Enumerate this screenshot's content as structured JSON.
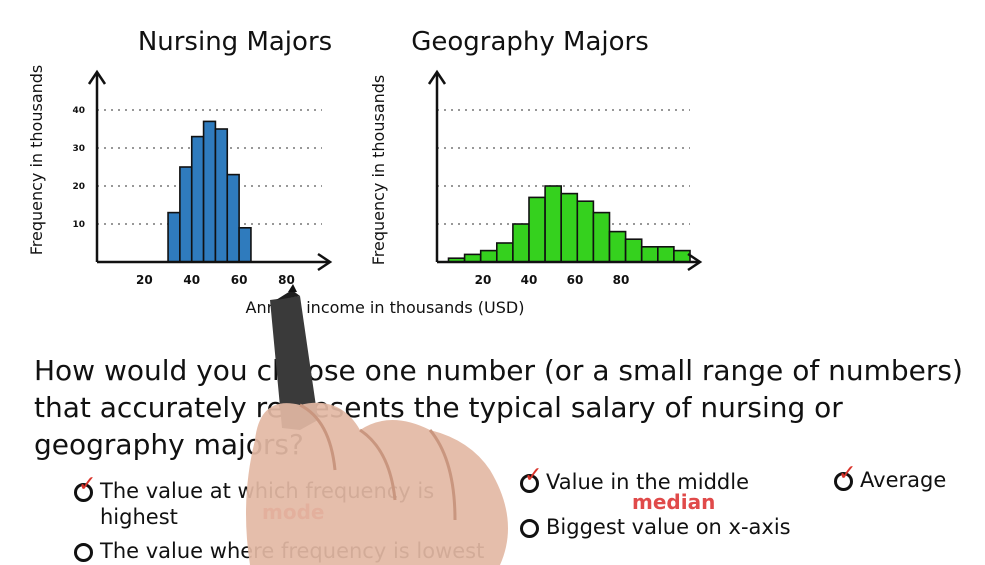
{
  "chart_data": [
    {
      "type": "bar",
      "title": "Nursing Majors",
      "ylabel": "Frequency in thousands",
      "xlabel": "Annual income in thousands (USD)",
      "x_ticks": [
        "20",
        "40",
        "60",
        "80"
      ],
      "y_ticks": [
        "10",
        "20",
        "30",
        "40"
      ],
      "ylim": [
        0,
        40
      ],
      "xlim": [
        0,
        95
      ],
      "bar_color": "#2f7bbd",
      "bins": [
        {
          "x0": 30,
          "x1": 35,
          "value": 13
        },
        {
          "x0": 35,
          "x1": 40,
          "value": 25
        },
        {
          "x0": 40,
          "x1": 45,
          "value": 33
        },
        {
          "x0": 45,
          "x1": 50,
          "value": 37
        },
        {
          "x0": 50,
          "x1": 55,
          "value": 35
        },
        {
          "x0": 55,
          "x1": 60,
          "value": 23
        },
        {
          "x0": 60,
          "x1": 65,
          "value": 9
        }
      ],
      "grid": true
    },
    {
      "type": "bar",
      "title": "Geography Majors",
      "ylabel": "Frequency in thousands",
      "x_ticks": [
        "20",
        "40",
        "60",
        "80"
      ],
      "ylim": [
        0,
        40
      ],
      "xlim": [
        0,
        110
      ],
      "bar_color": "#35d11e",
      "bins": [
        {
          "x0": 5,
          "x1": 12,
          "value": 1
        },
        {
          "x0": 12,
          "x1": 19,
          "value": 2
        },
        {
          "x0": 19,
          "x1": 26,
          "value": 3
        },
        {
          "x0": 26,
          "x1": 33,
          "value": 5
        },
        {
          "x0": 33,
          "x1": 40,
          "value": 10
        },
        {
          "x0": 40,
          "x1": 47,
          "value": 17
        },
        {
          "x0": 47,
          "x1": 54,
          "value": 20
        },
        {
          "x0": 54,
          "x1": 61,
          "value": 18
        },
        {
          "x0": 61,
          "x1": 68,
          "value": 16
        },
        {
          "x0": 68,
          "x1": 75,
          "value": 13
        },
        {
          "x0": 75,
          "x1": 82,
          "value": 8
        },
        {
          "x0": 82,
          "x1": 89,
          "value": 6
        },
        {
          "x0": 89,
          "x1": 96,
          "value": 4
        },
        {
          "x0": 96,
          "x1": 103,
          "value": 4
        },
        {
          "x0": 103,
          "x1": 110,
          "value": 3
        }
      ],
      "grid": true
    }
  ],
  "question": "How would you choose one number (or a small range of numbers) that accurately represents the typical salary of nursing or geography majors?",
  "options": [
    {
      "label": "The value at which frequency is highest",
      "checked": true,
      "note": "mode"
    },
    {
      "label": "The value where frequency is lowest",
      "checked": false
    },
    {
      "label": "Value in the middle",
      "checked": true,
      "note": "median"
    },
    {
      "label": "Biggest value on x-axis",
      "checked": false
    },
    {
      "label": "Average",
      "checked": true
    }
  ],
  "check_glyph": "✓",
  "accent_color": "#d9342b"
}
